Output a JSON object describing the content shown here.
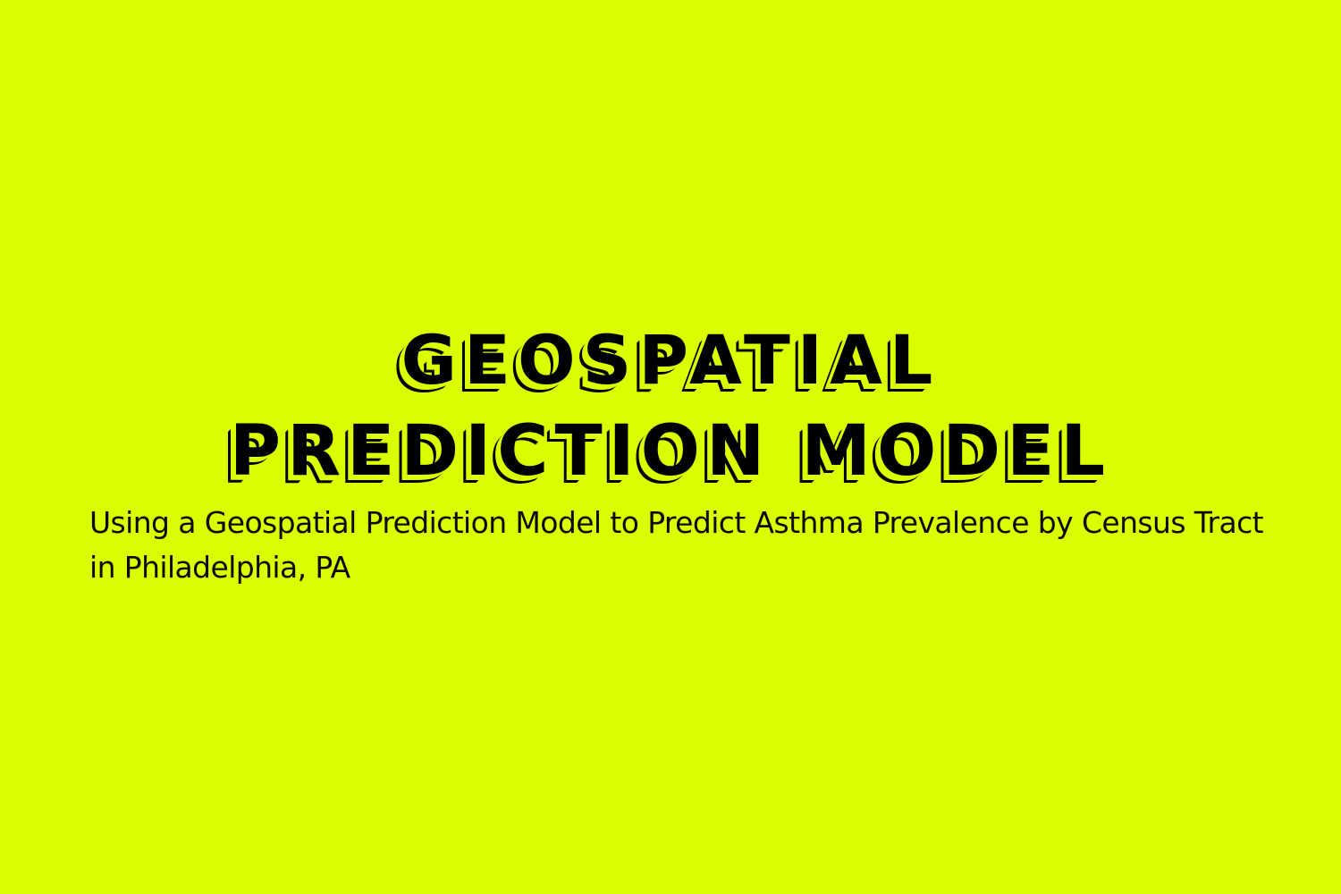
{
  "colors": {
    "background": "#DCFF00",
    "text": "#000000"
  },
  "title": {
    "line1": "GEOSPATIAL",
    "line2": "PREDICTION MODEL"
  },
  "subtitle": {
    "line1": "Using a Geospatial Prediction Model to Predict Asthma Prevalence by Census Tract",
    "line2": "in Philadelphia, PA"
  }
}
